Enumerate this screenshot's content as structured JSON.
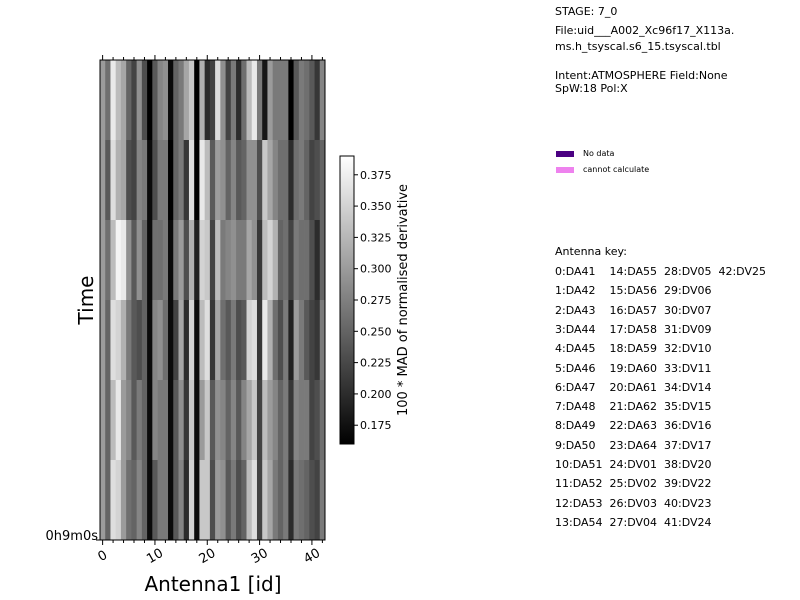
{
  "info": {
    "stage": "STAGE: 7_0",
    "file_line1": "File:uid___A002_Xc96f17_X113a.",
    "file_line2": "ms.h_tsyscal.s6_15.tsyscal.tbl",
    "intent_line1": "Intent:ATMOSPHERE Field:None",
    "intent_line2": "SpW:18 Pol:X"
  },
  "legend": [
    {
      "label": "No data",
      "color": "#4b0082"
    },
    {
      "label": "cannot calculate",
      "color": "#ee82ee"
    }
  ],
  "antenna_key": {
    "title": "Antenna key:",
    "rows": [
      "0:DA41    14:DA55  28:DV05  42:DV25",
      "1:DA42    15:DA56  29:DV06",
      "2:DA43    16:DA57  30:DV07",
      "3:DA44    17:DA58  31:DV09",
      "4:DA45    18:DA59  32:DV10",
      "5:DA46    19:DA60  33:DV11",
      "6:DA47    20:DA61  34:DV14",
      "7:DA48    21:DA62  35:DV15",
      "8:DA49    22:DA63  36:DV16",
      "9:DA50    23:DA64  37:DV17",
      "10:DA51  24:DV01  38:DV20",
      "11:DA52  25:DV02  39:DV22",
      "12:DA53  26:DV03  40:DV23",
      "13:DA54  27:DV04  41:DV24"
    ]
  },
  "chart_data": {
    "type": "heatmap",
    "xlabel": "Antenna1 [id]",
    "ylabel": "Time",
    "xlim": [
      0,
      42
    ],
    "x_ticks": [
      0,
      10,
      20,
      30,
      40
    ],
    "y_tick_labels": [
      "0h9m0s"
    ],
    "colorbar_label": "100 * MAD of normalised derivative",
    "colorbar_range": [
      0.16,
      0.39
    ],
    "colorbar_ticks": [
      0.175,
      0.2,
      0.225,
      0.25,
      0.275,
      0.3,
      0.325,
      0.35,
      0.375
    ],
    "colorbar_tick_labels": [
      "0.175",
      "0.200",
      "0.225",
      "0.250",
      "0.275",
      "0.300",
      "0.325",
      "0.350",
      "0.375"
    ],
    "colormap": "gray",
    "n_time_rows": 6,
    "values": [
      [
        0.3,
        0.26,
        0.37,
        0.33,
        0.31,
        0.25,
        0.22,
        0.29,
        0.23,
        0.16,
        0.24,
        0.28,
        0.29,
        0.17,
        0.25,
        0.27,
        0.31,
        0.34,
        0.16,
        0.32,
        0.2,
        0.22,
        0.36,
        0.29,
        0.22,
        0.27,
        0.2,
        0.26,
        0.33,
        0.37,
        0.27,
        0.18,
        0.3,
        0.27,
        0.27,
        0.27,
        0.16,
        0.24,
        0.27,
        0.26,
        0.24,
        0.21,
        0.28
      ],
      [
        0.3,
        0.24,
        0.36,
        0.32,
        0.31,
        0.23,
        0.22,
        0.28,
        0.27,
        0.17,
        0.23,
        0.27,
        0.27,
        0.16,
        0.25,
        0.27,
        0.21,
        0.36,
        0.16,
        0.37,
        0.33,
        0.24,
        0.3,
        0.29,
        0.25,
        0.28,
        0.24,
        0.25,
        0.29,
        0.29,
        0.23,
        0.34,
        0.31,
        0.28,
        0.26,
        0.26,
        0.2,
        0.26,
        0.27,
        0.25,
        0.22,
        0.23,
        0.25
      ],
      [
        0.3,
        0.26,
        0.33,
        0.38,
        0.37,
        0.29,
        0.24,
        0.29,
        0.25,
        0.17,
        0.26,
        0.26,
        0.27,
        0.17,
        0.27,
        0.3,
        0.23,
        0.32,
        0.19,
        0.35,
        0.34,
        0.22,
        0.33,
        0.27,
        0.28,
        0.29,
        0.27,
        0.27,
        0.31,
        0.29,
        0.21,
        0.33,
        0.35,
        0.32,
        0.25,
        0.26,
        0.22,
        0.27,
        0.26,
        0.26,
        0.23,
        0.2,
        0.25
      ],
      [
        0.3,
        0.25,
        0.36,
        0.35,
        0.32,
        0.27,
        0.24,
        0.23,
        0.25,
        0.17,
        0.28,
        0.29,
        0.26,
        0.17,
        0.22,
        0.31,
        0.2,
        0.35,
        0.17,
        0.33,
        0.36,
        0.21,
        0.31,
        0.26,
        0.24,
        0.27,
        0.23,
        0.24,
        0.35,
        0.36,
        0.21,
        0.37,
        0.32,
        0.26,
        0.23,
        0.27,
        0.19,
        0.3,
        0.27,
        0.24,
        0.22,
        0.21,
        0.27
      ],
      [
        0.3,
        0.25,
        0.33,
        0.37,
        0.3,
        0.28,
        0.24,
        0.27,
        0.25,
        0.17,
        0.28,
        0.27,
        0.27,
        0.17,
        0.24,
        0.29,
        0.21,
        0.34,
        0.17,
        0.3,
        0.34,
        0.24,
        0.29,
        0.28,
        0.25,
        0.28,
        0.24,
        0.28,
        0.31,
        0.34,
        0.22,
        0.33,
        0.3,
        0.28,
        0.25,
        0.27,
        0.21,
        0.28,
        0.27,
        0.27,
        0.22,
        0.23,
        0.26
      ],
      [
        0.3,
        0.25,
        0.36,
        0.35,
        0.3,
        0.26,
        0.25,
        0.28,
        0.25,
        0.17,
        0.24,
        0.27,
        0.27,
        0.17,
        0.24,
        0.28,
        0.2,
        0.35,
        0.17,
        0.34,
        0.34,
        0.23,
        0.3,
        0.29,
        0.24,
        0.27,
        0.23,
        0.25,
        0.33,
        0.36,
        0.22,
        0.34,
        0.31,
        0.27,
        0.25,
        0.27,
        0.2,
        0.27,
        0.26,
        0.25,
        0.23,
        0.22,
        0.27
      ]
    ]
  }
}
